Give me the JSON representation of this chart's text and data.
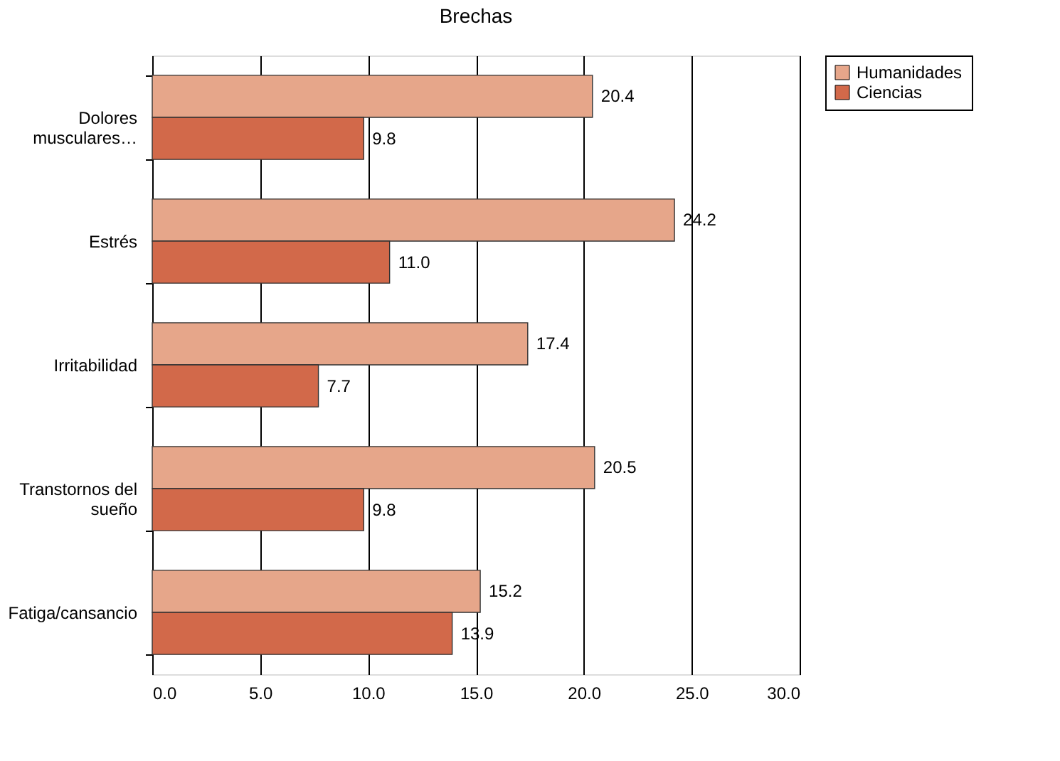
{
  "chart_data": {
    "type": "bar",
    "orientation": "horizontal",
    "title": "Brechas",
    "categories": [
      "Dolores musculares…",
      "Estrés",
      "Irritabilidad",
      "Transtornos del sueño",
      "Fatiga/cansancio"
    ],
    "series": [
      {
        "name": "Humanidades",
        "color": "#e6a68a",
        "values": [
          20.4,
          24.2,
          17.4,
          20.5,
          15.2
        ],
        "value_labels": [
          "20.4",
          "24.2",
          "17.4",
          "20.5",
          "15.2"
        ]
      },
      {
        "name": "Ciencias",
        "color": "#d2694a",
        "values": [
          9.8,
          11.0,
          7.7,
          9.8,
          13.9
        ],
        "value_labels": [
          "9.8",
          "11.0",
          "7.7",
          "9.8",
          "13.9"
        ]
      }
    ],
    "xlim": [
      0,
      30
    ],
    "xticks": [
      {
        "value": 0,
        "label": "0.0"
      },
      {
        "value": 5,
        "label": "5.0"
      },
      {
        "value": 10,
        "label": "10.0"
      },
      {
        "value": 15,
        "label": "15.0"
      },
      {
        "value": 20,
        "label": "20.0"
      },
      {
        "value": 25,
        "label": "25.0"
      },
      {
        "value": 30,
        "label": "30.0"
      }
    ],
    "grid": "x",
    "legend": "right"
  }
}
